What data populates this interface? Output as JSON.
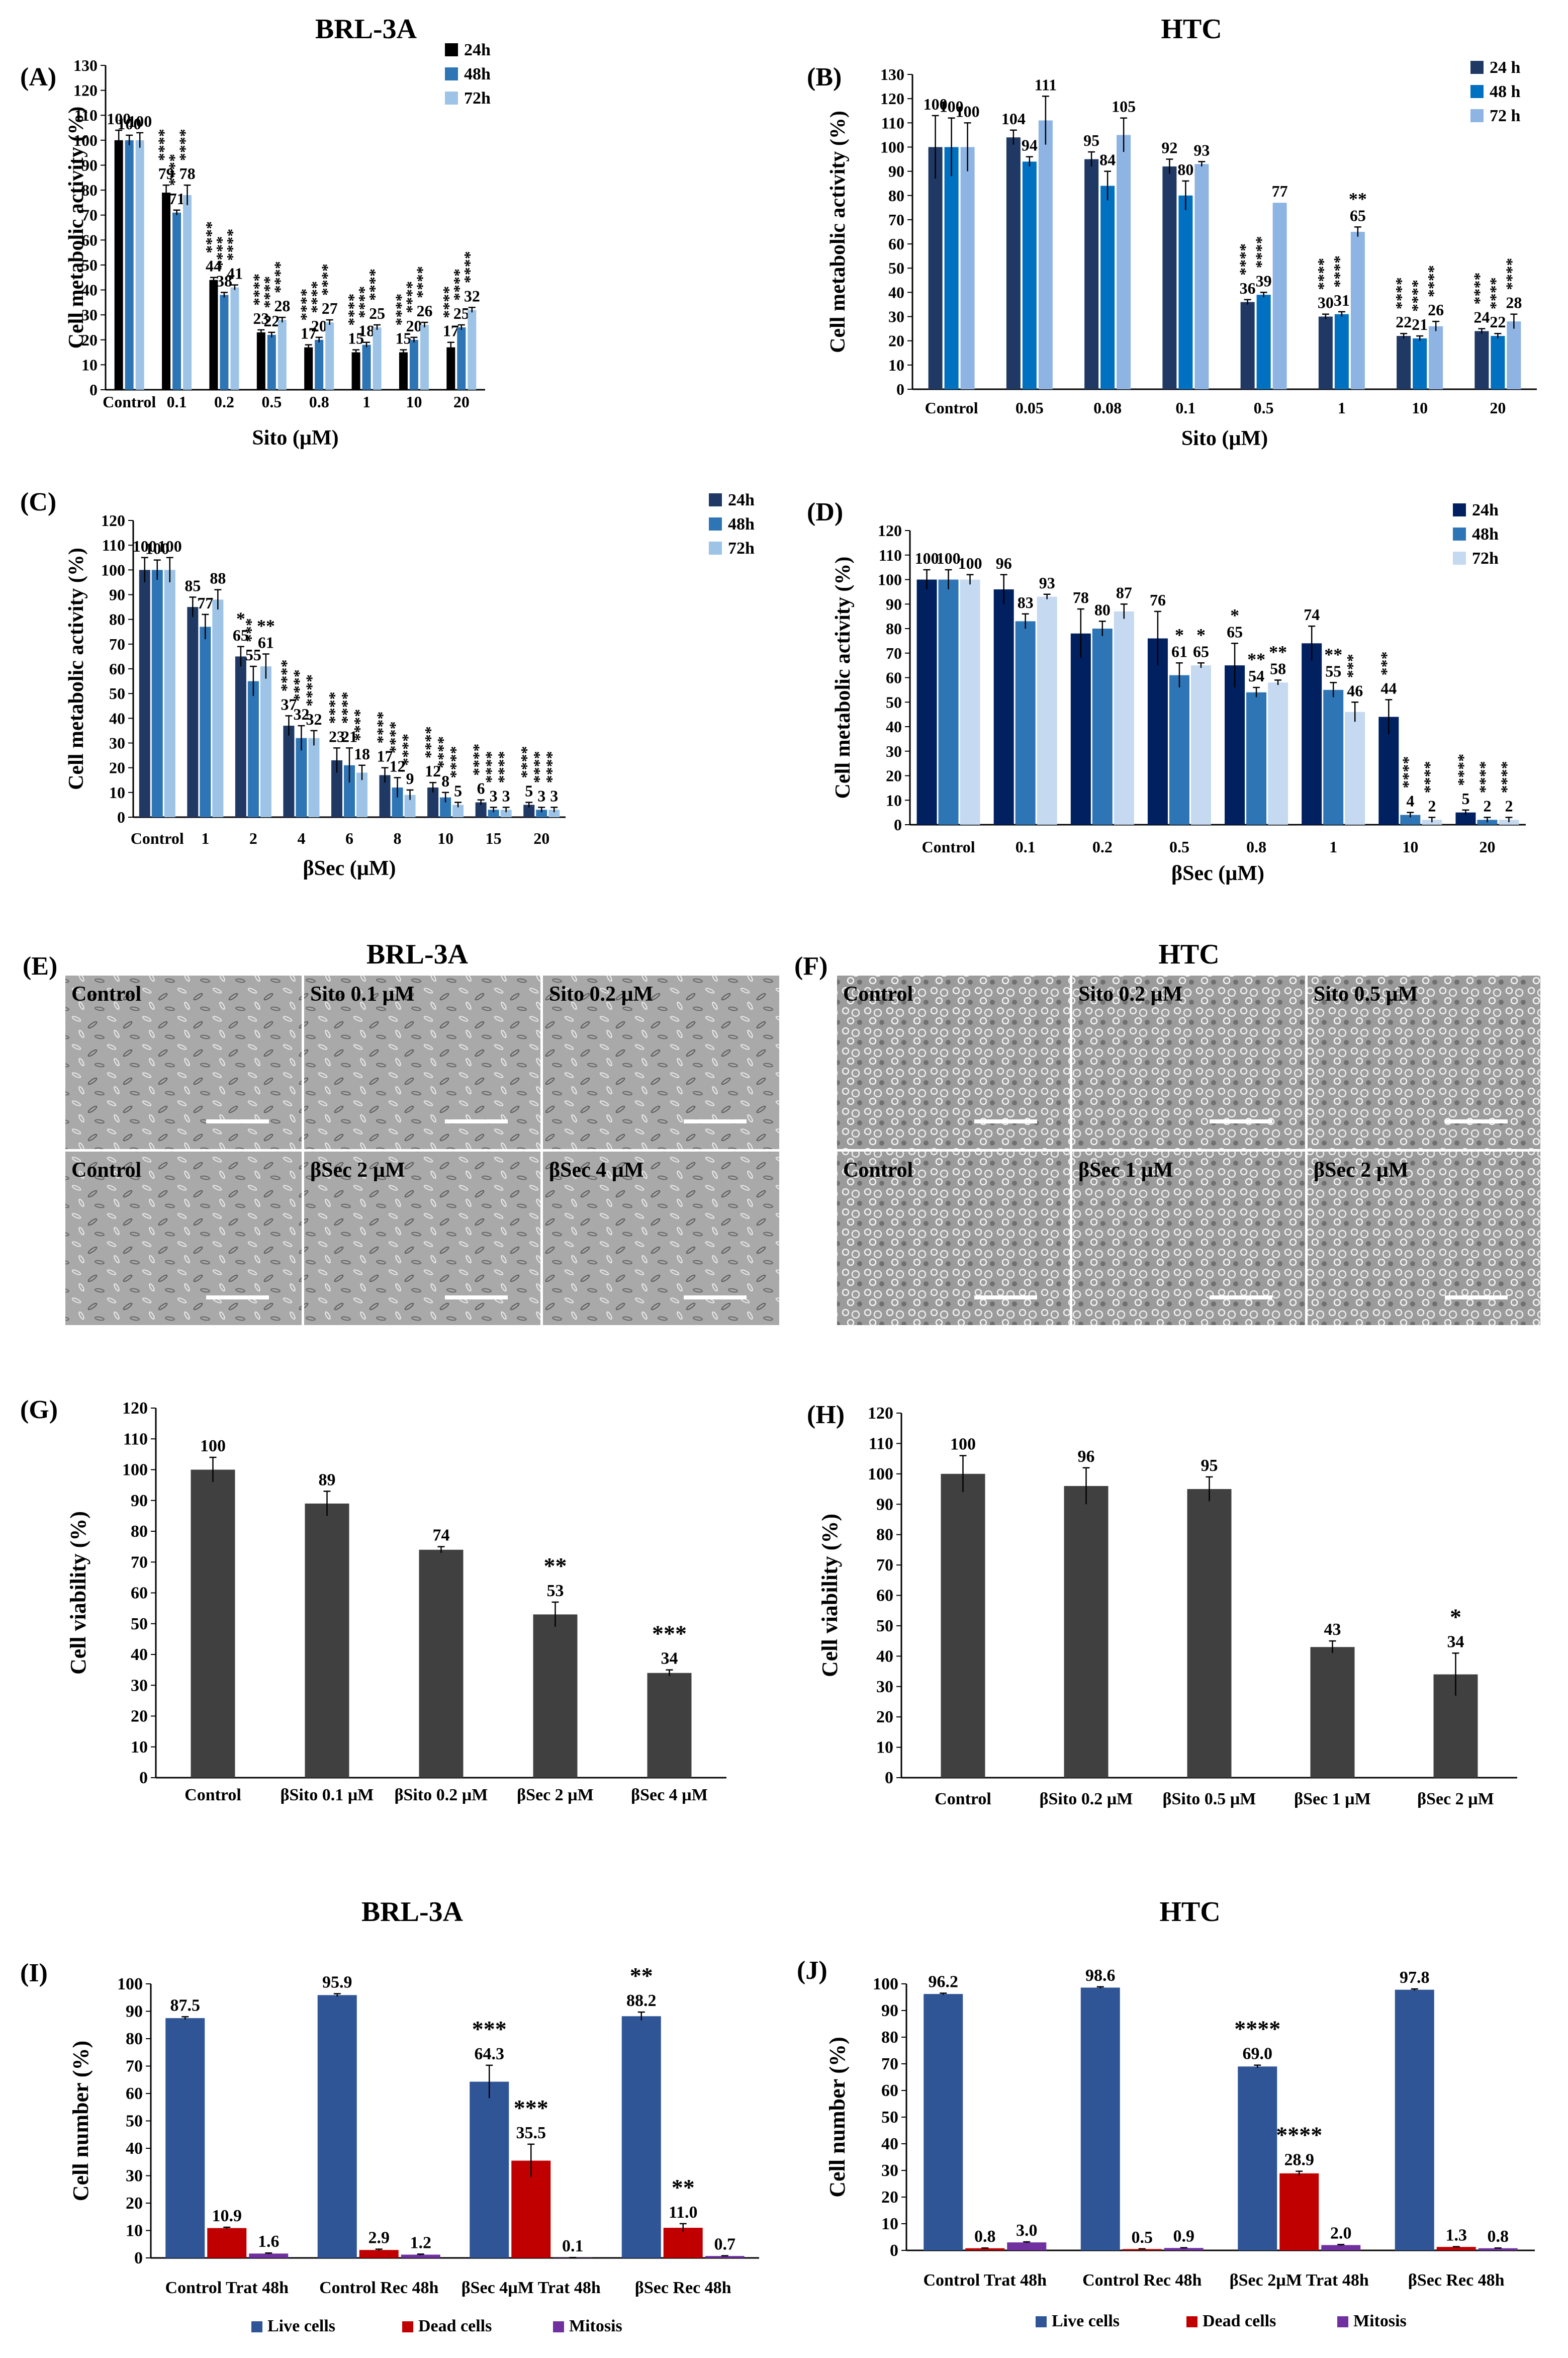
{
  "headers": {
    "row1_left": "BRL-3A",
    "row1_right": "HTC",
    "micro_left": "BRL-3A",
    "micro_right": "HTC",
    "row5_left": "BRL-3A",
    "row5_right": "HTC"
  },
  "colors": {
    "A": [
      "#000000",
      "#2e75b6",
      "#9dc3e6"
    ],
    "B": [
      "#203864",
      "#0070c0",
      "#8eb4e3"
    ],
    "C": [
      "#1f3864",
      "#2e75b6",
      "#9dc3e6"
    ],
    "D": [
      "#002060",
      "#2e75b6",
      "#c5d9f1"
    ],
    "gray": "#404040",
    "live": "#2f5597",
    "dead": "#c00000",
    "mitosis": "#7030a0"
  },
  "micro": {
    "E": {
      "label": "(E)",
      "tiles": [
        "Control",
        "Sito 0.1 µM",
        "Sito 0.2 µM",
        "Control",
        "βSec 2 µM",
        "βSec 4 µM"
      ]
    },
    "F": {
      "label": "(F)",
      "tiles": [
        "Control",
        "Sito 0.2 µM",
        "Sito 0.5 µM",
        "Control",
        "βSec 1 µM",
        "βSec 2 µM"
      ]
    }
  },
  "chart_data": [
    {
      "panel": "(A)",
      "type": "bar",
      "title": "",
      "xlabel": "Sito (µM)",
      "ylabel": "Cell metabolic activity (%)",
      "ylim": [
        0,
        130
      ],
      "ytick_step": 10,
      "legend": "top-right",
      "categories": [
        "Control",
        "0.1",
        "0.2",
        "0.5",
        "0.8",
        "1",
        "10",
        "20"
      ],
      "series": [
        {
          "name": "24h",
          "values": [
            100,
            79,
            44,
            23,
            17,
            15,
            15,
            17
          ],
          "errors": [
            4,
            3,
            1,
            1,
            1,
            1,
            1,
            2
          ],
          "sig": [
            "",
            "****",
            "****",
            "****",
            "****",
            "****",
            "****",
            "****"
          ]
        },
        {
          "name": "48h",
          "values": [
            100,
            71,
            38,
            22,
            20,
            18,
            20,
            25
          ],
          "errors": [
            2,
            1,
            1,
            1,
            1,
            1,
            1,
            1
          ],
          "sig": [
            "",
            "****",
            "****",
            "****",
            "****",
            "****",
            "****",
            "****"
          ]
        },
        {
          "name": "72h",
          "values": [
            100,
            78,
            41,
            28,
            27,
            25,
            26,
            32
          ],
          "errors": [
            3,
            4,
            1,
            1,
            1,
            1,
            1,
            1
          ],
          "sig": [
            "",
            "****",
            "****",
            "****",
            "****",
            "****",
            "****",
            "****"
          ]
        }
      ]
    },
    {
      "panel": "(B)",
      "type": "bar",
      "title": "",
      "xlabel": "Sito (µM)",
      "ylabel": "Cell metabolic activity (%)",
      "ylim": [
        0,
        130
      ],
      "ytick_step": 10,
      "legend": "top-right",
      "categories": [
        "Control",
        "0.05",
        "0.08",
        "0.1",
        "0.5",
        "1",
        "10",
        "20"
      ],
      "series": [
        {
          "name": "24 h",
          "values": [
            100,
            104,
            95,
            92,
            36,
            30,
            22,
            24
          ],
          "errors": [
            13,
            3,
            3,
            3,
            1,
            1,
            1,
            1
          ],
          "sig": [
            "",
            "",
            "",
            "",
            "****",
            "****",
            "****",
            "****"
          ]
        },
        {
          "name": "48 h",
          "values": [
            100,
            94,
            84,
            80,
            39,
            31,
            21,
            22
          ],
          "errors": [
            12,
            2,
            6,
            6,
            1,
            1,
            1,
            1
          ],
          "sig": [
            "",
            "",
            "",
            "",
            "****",
            "****",
            "****",
            "****"
          ]
        },
        {
          "name": "72 h",
          "values": [
            100,
            111,
            105,
            93,
            77,
            65,
            26,
            28
          ],
          "errors": [
            10,
            10,
            7,
            1,
            0,
            2,
            2,
            3
          ],
          "sig": [
            "",
            "",
            "",
            "",
            "",
            "**",
            "****",
            "****"
          ]
        }
      ]
    },
    {
      "panel": "(C)",
      "type": "bar",
      "title": "",
      "xlabel": "βSec (µM)",
      "ylabel": "Cell metabolic activity (%)",
      "ylim": [
        0,
        120
      ],
      "ytick_step": 10,
      "legend": "top-right",
      "categories": [
        "Control",
        "1",
        "2",
        "4",
        "6",
        "8",
        "10",
        "15",
        "20"
      ],
      "series": [
        {
          "name": "24h",
          "values": [
            100,
            85,
            65,
            37,
            23,
            17,
            12,
            6,
            5
          ],
          "errors": [
            5,
            4,
            4,
            4,
            5,
            3,
            2,
            1,
            1
          ],
          "sig": [
            "",
            "",
            "*",
            "****",
            "****",
            "****",
            "****",
            "****",
            "****"
          ]
        },
        {
          "name": "48h",
          "values": [
            100,
            77,
            55,
            32,
            21,
            12,
            8,
            3,
            3
          ],
          "errors": [
            4,
            5,
            6,
            5,
            7,
            4,
            2,
            1,
            1
          ],
          "sig": [
            "",
            "",
            "***",
            "****",
            "****",
            "****",
            "****",
            "****",
            "****"
          ]
        },
        {
          "name": "72h",
          "values": [
            100,
            88,
            61,
            32,
            18,
            9,
            5,
            3,
            3
          ],
          "errors": [
            5,
            4,
            5,
            3,
            3,
            2,
            1,
            1,
            1
          ],
          "sig": [
            "",
            "",
            "**",
            "****",
            "****",
            "****",
            "****",
            "****",
            "****"
          ]
        }
      ]
    },
    {
      "panel": "(D)",
      "type": "bar",
      "title": "",
      "xlabel": "βSec (µM)",
      "ylabel": "Cell metabolic activity (%)",
      "ylim": [
        0,
        120
      ],
      "ytick_step": 10,
      "legend": "top-right",
      "categories": [
        "Control",
        "0.1",
        "0.2",
        "0.5",
        "0.8",
        "1",
        "10",
        "20"
      ],
      "series": [
        {
          "name": "24h",
          "values": [
            100,
            96,
            78,
            76,
            65,
            74,
            44,
            5
          ],
          "errors": [
            4,
            6,
            10,
            11,
            9,
            7,
            7,
            1
          ],
          "sig": [
            "",
            "",
            "",
            "",
            "*",
            "",
            "***",
            "****"
          ]
        },
        {
          "name": "48h",
          "values": [
            100,
            83,
            80,
            61,
            54,
            55,
            4,
            2
          ],
          "errors": [
            4,
            3,
            3,
            5,
            2,
            3,
            1,
            1
          ],
          "sig": [
            "",
            "",
            "",
            "*",
            "**",
            "**",
            "****",
            "****"
          ]
        },
        {
          "name": "72h",
          "values": [
            100,
            93,
            87,
            65,
            58,
            46,
            2,
            2
          ],
          "errors": [
            2,
            1,
            3,
            1,
            1,
            4,
            1,
            1
          ],
          "sig": [
            "",
            "",
            "",
            "*",
            "**",
            "***",
            "****",
            "****"
          ]
        }
      ]
    },
    {
      "panel": "(G)",
      "type": "bar",
      "title": "",
      "xlabel": "",
      "ylabel": "Cell viability (%)",
      "ylim": [
        0,
        120
      ],
      "ytick_step": 10,
      "categories": [
        "Control",
        "βSito 0.1 µM",
        "βSito 0.2 µM",
        "βSec 2 µM",
        "βSec 4 µM"
      ],
      "series": [
        {
          "name": "Cell viability",
          "values": [
            100,
            89,
            74,
            53,
            34
          ],
          "errors": [
            4,
            4,
            1,
            4,
            1
          ],
          "sig": [
            "",
            "",
            "",
            "**",
            "***"
          ]
        }
      ]
    },
    {
      "panel": "(H)",
      "type": "bar",
      "title": "",
      "xlabel": "",
      "ylabel": "Cell viability (%)",
      "ylim": [
        0,
        120
      ],
      "ytick_step": 10,
      "categories": [
        "Control",
        "βSito 0.2 µM",
        "βSito 0.5 µM",
        "βSec 1 µM",
        "βSec 2 µM"
      ],
      "series": [
        {
          "name": "Cell viability",
          "values": [
            100,
            96,
            95,
            43,
            34
          ],
          "errors": [
            6,
            6,
            4,
            2,
            7
          ],
          "sig": [
            "",
            "",
            "",
            "",
            "*"
          ]
        }
      ]
    },
    {
      "panel": "(I)",
      "type": "bar",
      "title": "BRL-3A",
      "xlabel": "",
      "ylabel": "Cell number (%)",
      "ylim": [
        0,
        100
      ],
      "ytick_step": 10,
      "legend": "bottom",
      "categories": [
        "Control Trat 48h",
        "Control Rec 48h",
        "βSec 4µM Trat 48h",
        "βSec Rec 48h"
      ],
      "series": [
        {
          "name": "Live cells",
          "values": [
            87.5,
            95.9,
            64.3,
            88.2
          ],
          "labels": [
            "87.5",
            "95.9",
            "64.3",
            "88.2"
          ],
          "errors": [
            0.5,
            0.5,
            6,
            1.5
          ],
          "sig": [
            "",
            "",
            "***",
            "**"
          ]
        },
        {
          "name": "Dead cells",
          "values": [
            10.9,
            2.9,
            35.5,
            11.0
          ],
          "labels": [
            "10.9",
            "2.9",
            "35.5",
            "11.0"
          ],
          "errors": [
            0.3,
            0.3,
            6,
            1.5
          ],
          "sig": [
            "",
            "",
            "***",
            "**"
          ]
        },
        {
          "name": "Mitosis",
          "values": [
            1.6,
            1.2,
            0.1,
            0.7
          ],
          "labels": [
            "1.6",
            "1.2",
            "0.1",
            "0.7"
          ],
          "errors": [
            0.2,
            0.2,
            0.05,
            0.1
          ],
          "sig": [
            "",
            "",
            "",
            ""
          ]
        }
      ]
    },
    {
      "panel": "(J)",
      "type": "bar",
      "title": "HTC",
      "xlabel": "",
      "ylabel": "Cell number (%)",
      "ylim": [
        0,
        100
      ],
      "ytick_step": 10,
      "legend": "bottom",
      "categories": [
        "Control Trat 48h",
        "Control Rec 48h",
        "βSec 2µM Trat 48h",
        "βSec Rec 48h"
      ],
      "series": [
        {
          "name": "Live cells",
          "values": [
            96.2,
            98.6,
            69.0,
            97.8
          ],
          "labels": [
            "96.2",
            "98.6",
            "69.0",
            "97.8"
          ],
          "errors": [
            0.3,
            0.3,
            0.5,
            0.3
          ],
          "sig": [
            "",
            "",
            "****",
            ""
          ]
        },
        {
          "name": "Dead cells",
          "values": [
            0.8,
            0.5,
            28.9,
            1.3
          ],
          "labels": [
            "0.8",
            "0.5",
            "28.9",
            "1.3"
          ],
          "errors": [
            0.1,
            0.1,
            0.8,
            0.1
          ],
          "sig": [
            "",
            "",
            "****",
            ""
          ]
        },
        {
          "name": "Mitosis",
          "values": [
            3.0,
            0.9,
            2.0,
            0.8
          ],
          "labels": [
            "3.0",
            "0.9",
            "2.0",
            "0.8"
          ],
          "errors": [
            0.2,
            0.1,
            0.2,
            0.1
          ],
          "sig": [
            "",
            "",
            "",
            ""
          ]
        }
      ]
    }
  ]
}
